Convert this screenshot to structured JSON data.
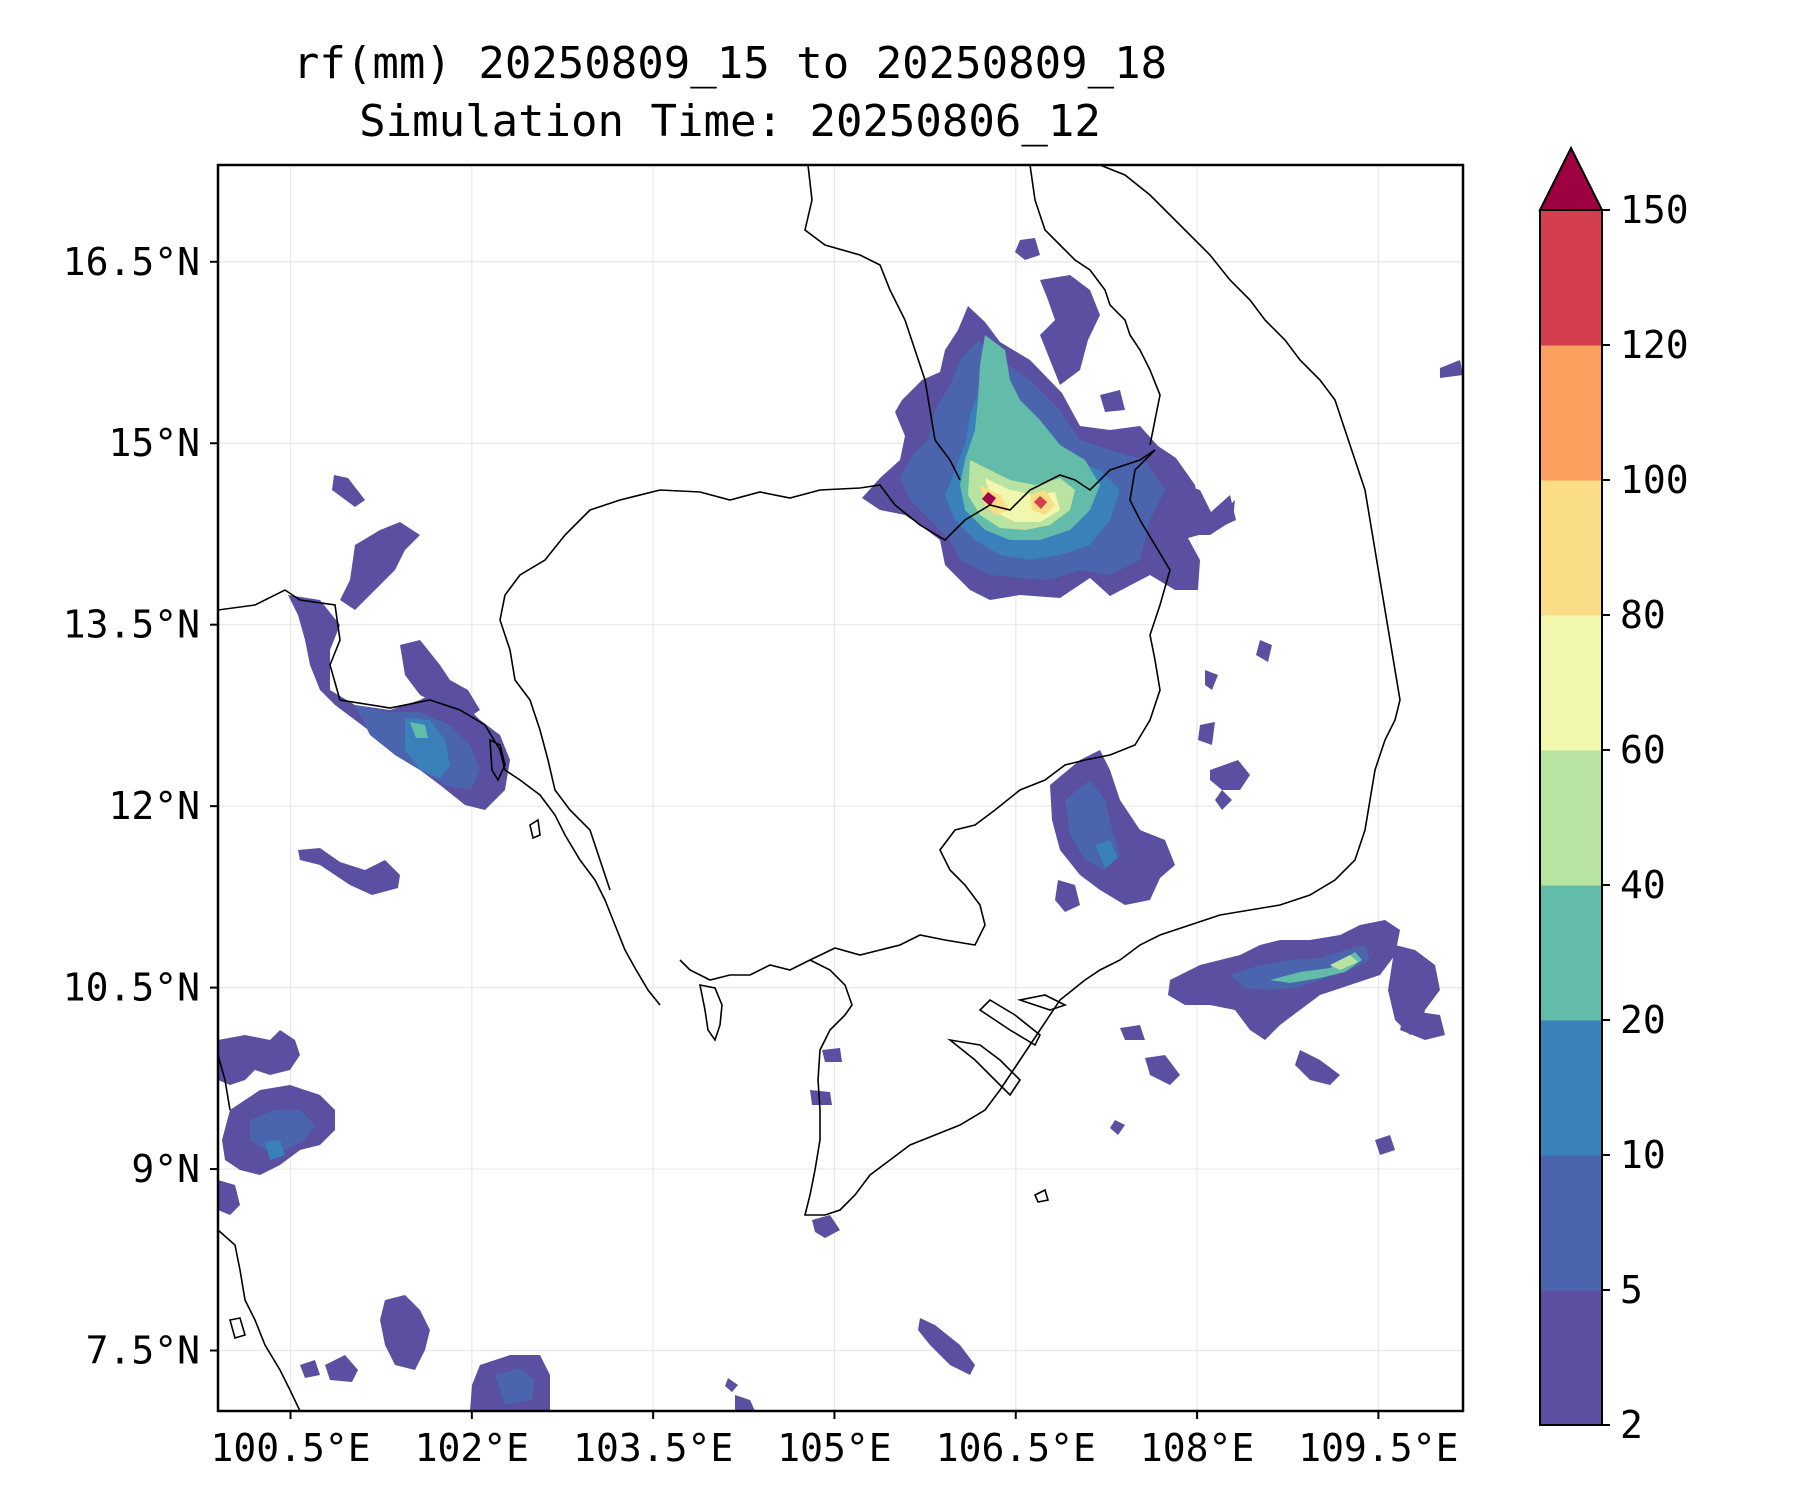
{
  "title": {
    "line1": "rf(mm) 20250809_15 to 20250809_18",
    "line2": "Simulation Time: 20250806_12"
  },
  "map": {
    "lon_range": [
      99.9,
      110.2
    ],
    "lat_range": [
      7.0,
      17.3
    ],
    "x_ticks": [
      {
        "value": 100.5,
        "label": "100.5°E"
      },
      {
        "value": 102,
        "label": "102°E"
      },
      {
        "value": 103.5,
        "label": "103.5°E"
      },
      {
        "value": 105,
        "label": "105°E"
      },
      {
        "value": 106.5,
        "label": "106.5°E"
      },
      {
        "value": 108,
        "label": "108°E"
      },
      {
        "value": 109.5,
        "label": "109.5°E"
      }
    ],
    "y_ticks": [
      {
        "value": 16.5,
        "label": "16.5°N"
      },
      {
        "value": 15,
        "label": "15°N"
      },
      {
        "value": 13.5,
        "label": "13.5°N"
      },
      {
        "value": 12,
        "label": "12°N"
      },
      {
        "value": 10.5,
        "label": "10.5°N"
      },
      {
        "value": 9,
        "label": "9°N"
      },
      {
        "value": 7.5,
        "label": "7.5°N"
      }
    ],
    "grid": true
  },
  "colorbar": {
    "levels": [
      "2",
      "5",
      "10",
      "20",
      "40",
      "60",
      "80",
      "100",
      "120",
      "150"
    ],
    "colors": [
      "#5a4fa1",
      "#4a64ad",
      "#3a80ba",
      "#62bca9",
      "#b9e3a0",
      "#f1f8ae",
      "#fbdd88",
      "#fba05f",
      "#d53e4f"
    ],
    "extend_color": "#9e0142",
    "extend": "max"
  },
  "rain_colors": {
    "c1": "#5a4fa1",
    "c2": "#4a64ad",
    "c3": "#3a80ba",
    "c4": "#62bca9",
    "c5": "#b9e3a0",
    "c6": "#f1f8ae",
    "c7": "#fbdd88",
    "c8": "#d53e4f",
    "c9": "#9e0142"
  }
}
